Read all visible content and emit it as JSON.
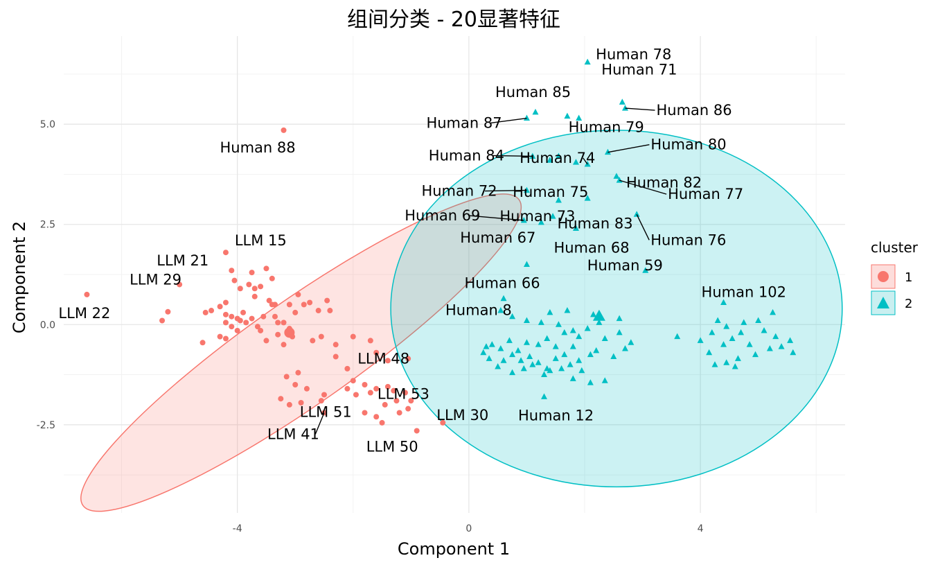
{
  "chart_data": {
    "type": "scatter",
    "title": "组间分类 - 20显著特征",
    "xlabel": "Component 1",
    "ylabel": "Component 2",
    "xlim": [
      -7.0,
      6.5
    ],
    "ylim": [
      -4.7,
      7.2
    ],
    "x_ticks": [
      -4,
      0,
      4
    ],
    "x_tick_labels": [
      "-4",
      "0",
      "4"
    ],
    "y_ticks": [
      -2.5,
      0.0,
      2.5,
      5.0
    ],
    "y_tick_labels": [
      "-2.5",
      "0.0",
      "2.5",
      "5.0"
    ],
    "grid": true,
    "legend": {
      "title": "cluster",
      "position": "right",
      "entries": [
        "1",
        "2"
      ]
    },
    "colors": {
      "cluster1": "#F8766D",
      "cluster2": "#00BFC4",
      "cluster1_fill": "#FDDDDB",
      "cluster2_fill": "#C9EFF0"
    },
    "ellipses": [
      {
        "cluster": "1",
        "center": [
          -2.9,
          -0.7
        ],
        "rx": 4.6,
        "ry": 1.3,
        "angle_deg": -35
      },
      {
        "cluster": "2",
        "center": [
          2.55,
          0.4
        ],
        "rx": 3.9,
        "ry": 4.45,
        "angle_deg": 0
      }
    ],
    "series": [
      {
        "name": "1",
        "marker": "circle",
        "points": [
          [
            -6.6,
            0.75
          ],
          [
            -3.2,
            4.85
          ],
          [
            -4.2,
            1.8
          ],
          [
            -5.0,
            1.0
          ],
          [
            -5.2,
            0.32
          ],
          [
            -5.3,
            0.1
          ],
          [
            -4.1,
            1.35
          ],
          [
            -4.05,
            1.1
          ],
          [
            -3.95,
            0.9
          ],
          [
            -3.75,
            1.3
          ],
          [
            -3.8,
            1.0
          ],
          [
            -3.7,
            0.7
          ],
          [
            -3.6,
            0.95
          ],
          [
            -3.5,
            1.4
          ],
          [
            -3.4,
            1.15
          ],
          [
            -3.45,
            0.6
          ],
          [
            -3.4,
            0.5
          ],
          [
            -3.55,
            0.2
          ],
          [
            -3.35,
            0.2
          ],
          [
            -3.3,
            0.05
          ],
          [
            -3.1,
            0.5
          ],
          [
            -3.0,
            0.3
          ],
          [
            -2.95,
            0.75
          ],
          [
            -2.85,
            0.5
          ],
          [
            -2.75,
            0.55
          ],
          [
            -2.6,
            0.35
          ],
          [
            -2.45,
            0.6
          ],
          [
            -2.4,
            0.35
          ],
          [
            -3.9,
            0.3
          ],
          [
            -4.0,
            0.15
          ],
          [
            -4.2,
            0.55
          ],
          [
            -4.3,
            0.45
          ],
          [
            -4.45,
            0.35
          ],
          [
            -4.55,
            0.3
          ],
          [
            -4.1,
            0.2
          ],
          [
            -3.95,
            0.1
          ],
          [
            -3.85,
            0.05
          ],
          [
            -3.75,
            0.15
          ],
          [
            -3.65,
            -0.05
          ],
          [
            -3.6,
            -0.15
          ],
          [
            -4.2,
            0.05
          ],
          [
            -4.1,
            -0.05
          ],
          [
            -4.3,
            -0.3
          ],
          [
            -4.2,
            -0.35
          ],
          [
            -4.0,
            -0.15
          ],
          [
            -3.5,
            -0.4
          ],
          [
            -3.3,
            -0.25
          ],
          [
            -3.2,
            0.05
          ],
          [
            -3.1,
            -0.1
          ],
          [
            -3.05,
            -0.3
          ],
          [
            -3.2,
            -0.5
          ],
          [
            -2.7,
            -0.4
          ],
          [
            -2.55,
            -0.3
          ],
          [
            -2.3,
            -0.5
          ],
          [
            -2.0,
            -0.3
          ],
          [
            -1.7,
            -0.4
          ],
          [
            -1.6,
            -0.7
          ],
          [
            -1.4,
            -0.9
          ],
          [
            -1.05,
            -0.85
          ],
          [
            -3.1,
            -0.2
          ],
          [
            -4.6,
            -0.45
          ],
          [
            -4.2,
            0.25
          ],
          [
            -3.7,
            0.9
          ],
          [
            -3.35,
            0.5
          ],
          [
            -2.3,
            -0.8
          ],
          [
            -2.1,
            -1.1
          ],
          [
            -2.0,
            -1.4
          ],
          [
            -2.1,
            -1.6
          ],
          [
            -1.95,
            -1.75
          ],
          [
            -1.8,
            -1.5
          ],
          [
            -1.7,
            -1.7
          ],
          [
            -1.6,
            -1.6
          ],
          [
            -1.4,
            -1.55
          ],
          [
            -1.3,
            -1.65
          ],
          [
            -1.25,
            -1.9
          ],
          [
            -1.1,
            -1.7
          ],
          [
            -1.0,
            -1.9
          ],
          [
            -1.05,
            -2.1
          ],
          [
            -1.2,
            -2.2
          ],
          [
            -1.45,
            -2.0
          ],
          [
            -1.6,
            -2.3
          ],
          [
            -1.8,
            -2.2
          ],
          [
            -2.5,
            -1.75
          ],
          [
            -2.55,
            -1.9
          ],
          [
            -2.8,
            -1.6
          ],
          [
            -2.9,
            -1.95
          ],
          [
            -3.0,
            -1.5
          ],
          [
            -2.95,
            -1.2
          ],
          [
            -2.5,
            -2.2
          ],
          [
            -3.1,
            -2.0
          ],
          [
            -3.15,
            -1.3
          ],
          [
            -3.25,
            -1.85
          ],
          [
            -1.5,
            -2.45
          ],
          [
            -0.9,
            -2.65
          ],
          [
            -0.45,
            -2.45
          ]
        ],
        "big_point": [
          -3.1,
          -0.2
        ]
      },
      {
        "name": "2",
        "marker": "triangle",
        "points": [
          [
            2.05,
            6.55
          ],
          [
            2.65,
            5.55
          ],
          [
            2.7,
            5.4
          ],
          [
            1.15,
            5.3
          ],
          [
            1.0,
            5.15
          ],
          [
            1.7,
            5.2
          ],
          [
            1.9,
            5.15
          ],
          [
            1.1,
            4.2
          ],
          [
            1.4,
            4.1
          ],
          [
            1.55,
            4.2
          ],
          [
            1.85,
            4.05
          ],
          [
            2.05,
            4.0
          ],
          [
            2.4,
            4.3
          ],
          [
            2.55,
            3.7
          ],
          [
            2.6,
            3.6
          ],
          [
            1.0,
            3.35
          ],
          [
            1.55,
            3.1
          ],
          [
            2.05,
            3.15
          ],
          [
            1.45,
            2.7
          ],
          [
            1.25,
            2.55
          ],
          [
            0.95,
            2.6
          ],
          [
            1.85,
            2.4
          ],
          [
            2.9,
            2.75
          ],
          [
            1.0,
            1.5
          ],
          [
            3.05,
            1.35
          ],
          [
            0.6,
            0.65
          ],
          [
            4.4,
            0.55
          ],
          [
            5.25,
            0.3
          ],
          [
            4.3,
            0.1
          ],
          [
            4.45,
            -0.05
          ],
          [
            4.7,
            -0.2
          ],
          [
            4.55,
            -0.35
          ],
          [
            4.4,
            -0.5
          ],
          [
            4.85,
            -0.5
          ],
          [
            5.0,
            0.1
          ],
          [
            5.1,
            -0.15
          ],
          [
            5.3,
            -0.3
          ],
          [
            5.4,
            -0.55
          ],
          [
            5.55,
            -0.4
          ],
          [
            5.6,
            -0.7
          ],
          [
            5.2,
            -0.6
          ],
          [
            4.95,
            -0.75
          ],
          [
            4.65,
            -0.85
          ],
          [
            4.45,
            -0.95
          ],
          [
            4.15,
            -0.7
          ],
          [
            4.0,
            -0.4
          ],
          [
            4.2,
            -0.2
          ],
          [
            4.75,
            0.05
          ],
          [
            4.25,
            -1.0
          ],
          [
            4.6,
            -1.05
          ],
          [
            3.6,
            -0.3
          ],
          [
            2.6,
            -0.2
          ],
          [
            2.8,
            -0.45
          ],
          [
            2.7,
            -0.6
          ],
          [
            2.5,
            -0.8
          ],
          [
            2.35,
            -0.35
          ],
          [
            2.25,
            0.05
          ],
          [
            2.15,
            0.25
          ],
          [
            2.05,
            -0.1
          ],
          [
            1.9,
            -0.3
          ],
          [
            1.8,
            -0.55
          ],
          [
            1.65,
            -0.75
          ],
          [
            1.5,
            -0.55
          ],
          [
            1.35,
            -0.35
          ],
          [
            1.2,
            -0.5
          ],
          [
            1.0,
            -0.45
          ],
          [
            0.85,
            -0.65
          ],
          [
            0.7,
            -0.4
          ],
          [
            0.55,
            -0.6
          ],
          [
            0.4,
            -0.5
          ],
          [
            0.3,
            -0.55
          ],
          [
            0.25,
            -0.7
          ],
          [
            0.35,
            -0.85
          ],
          [
            0.6,
            -0.9
          ],
          [
            0.75,
            -0.75
          ],
          [
            0.9,
            -0.9
          ],
          [
            1.05,
            -0.8
          ],
          [
            1.2,
            -0.95
          ],
          [
            1.35,
            -1.1
          ],
          [
            1.5,
            -0.85
          ],
          [
            1.6,
            -1.1
          ],
          [
            1.75,
            -1.0
          ],
          [
            1.9,
            -0.9
          ],
          [
            2.1,
            -0.75
          ],
          [
            2.2,
            -0.65
          ],
          [
            1.95,
            -1.15
          ],
          [
            1.8,
            -1.35
          ],
          [
            1.4,
            -1.15
          ],
          [
            1.3,
            -1.25
          ],
          [
            1.1,
            -1.0
          ],
          [
            0.95,
            -1.1
          ],
          [
            0.75,
            -1.2
          ],
          [
            0.5,
            -1.05
          ],
          [
            1.3,
            -1.8
          ],
          [
            2.1,
            -1.45
          ],
          [
            2.35,
            -1.4
          ],
          [
            1.4,
            0.3
          ],
          [
            1.0,
            0.1
          ],
          [
            0.75,
            0.2
          ],
          [
            1.55,
            0.0
          ],
          [
            1.65,
            -0.2
          ],
          [
            1.8,
            -0.15
          ],
          [
            1.25,
            0.05
          ],
          [
            2.6,
            0.15
          ],
          [
            1.7,
            0.35
          ],
          [
            0.55,
            0.35
          ]
        ],
        "big_point": [
          2.25,
          0.2
        ]
      }
    ],
    "labels": [
      {
        "text": "Human 78",
        "x": 2.05,
        "y": 6.55
      },
      {
        "text": "Human 71",
        "x": 2.65,
        "y": 5.55
      },
      {
        "text": "Human 86",
        "x": 2.7,
        "y": 5.4
      },
      {
        "text": "Human 85",
        "x": 1.15,
        "y": 5.3
      },
      {
        "text": "Human 87",
        "x": 1.0,
        "y": 5.15
      },
      {
        "text": "Human 79",
        "x": 1.9,
        "y": 5.15
      },
      {
        "text": "Human 84",
        "x": 1.1,
        "y": 4.2
      },
      {
        "text": "Human 74",
        "x": 2.05,
        "y": 4.0
      },
      {
        "text": "Human 80",
        "x": 2.4,
        "y": 4.3
      },
      {
        "text": "Human 82",
        "x": 2.55,
        "y": 3.7
      },
      {
        "text": "Human 75",
        "x": 2.05,
        "y": 3.15
      },
      {
        "text": "Human 72",
        "x": 1.0,
        "y": 3.35
      },
      {
        "text": "Human 77",
        "x": 2.6,
        "y": 3.6
      },
      {
        "text": "Human 73",
        "x": 1.25,
        "y": 2.55
      },
      {
        "text": "Human 69",
        "x": 0.95,
        "y": 2.6
      },
      {
        "text": "Human 83",
        "x": 1.85,
        "y": 2.4
      },
      {
        "text": "Human 76",
        "x": 2.9,
        "y": 2.75
      },
      {
        "text": "Human 67",
        "x": 0.95,
        "y": 2.6
      },
      {
        "text": "Human 68",
        "x": 1.85,
        "y": 2.4
      },
      {
        "text": "Human 59",
        "x": 3.05,
        "y": 1.35
      },
      {
        "text": "Human 66",
        "x": 1.0,
        "y": 1.5
      },
      {
        "text": "Human 102",
        "x": 4.4,
        "y": 0.55
      },
      {
        "text": "Human 8",
        "x": 0.6,
        "y": 0.65
      },
      {
        "text": "Human 12",
        "x": 1.15,
        "y": -1.8
      },
      {
        "text": "Human 88",
        "x": -3.2,
        "y": 4.85
      },
      {
        "text": "LLM 21",
        "x": -4.1,
        "y": 1.35
      },
      {
        "text": "LLM 15",
        "x": -3.95,
        "y": 1.8
      },
      {
        "text": "LLM 29",
        "x": -5.0,
        "y": 1.0
      },
      {
        "text": "LLM 22",
        "x": -6.6,
        "y": 0.75
      },
      {
        "text": "LLM 48",
        "x": -1.6,
        "y": -0.7
      },
      {
        "text": "LLM 53",
        "x": -1.4,
        "y": -1.3
      },
      {
        "text": "LLM 30",
        "x": -0.45,
        "y": -2.45
      },
      {
        "text": "LLM 51",
        "x": -2.0,
        "y": -2.1
      },
      {
        "text": "LLM 41",
        "x": -2.5,
        "y": -2.2
      },
      {
        "text": "LLM 50",
        "x": -0.9,
        "y": -2.65
      }
    ]
  }
}
